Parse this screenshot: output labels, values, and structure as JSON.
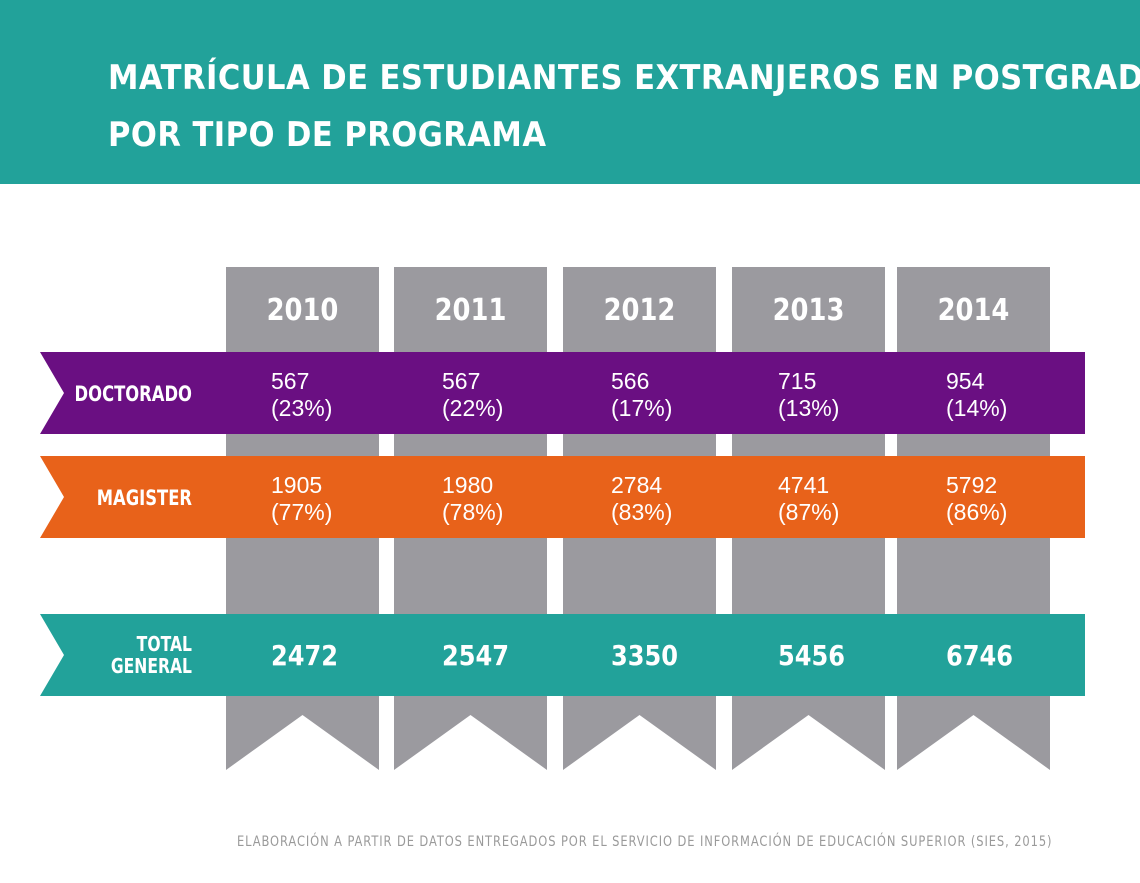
{
  "title_lines": [
    "MATRÍCULA DE ESTUDIANTES EXTRANJEROS EN POSTGRADO",
    "POR TIPO DE PROGRAMA"
  ],
  "source_note": "ELABORACIÓN A PARTIR DE DATOS ENTREGADOS POR EL SERVICIO DE INFORMACIÓN DE EDUCACIÓN SUPERIOR (SIES, 2015)",
  "colors": {
    "header": "#22a29a",
    "year_column": "#9b9a9f",
    "doctorado": "#6a0f82",
    "magister": "#e8621a",
    "total": "#22a29a",
    "text_light": "#ffffff",
    "source_text": "#9a9a9a"
  },
  "chart_data": {
    "type": "table",
    "columns": [
      "2010",
      "2011",
      "2012",
      "2013",
      "2014"
    ],
    "rows": [
      {
        "label_lines": [
          "DOCTORADO"
        ],
        "values": [
          567,
          567,
          566,
          715,
          954
        ],
        "percents": [
          "(23%)",
          "(22%)",
          "(17%)",
          "(13%)",
          "(14%)"
        ]
      },
      {
        "label_lines": [
          "MAGISTER"
        ],
        "values": [
          1905,
          1980,
          2784,
          4741,
          5792
        ],
        "percents": [
          "(77%)",
          "(78%)",
          "(83%)",
          "(87%)",
          "(86%)"
        ]
      },
      {
        "label_lines": [
          "TOTAL",
          "GENERAL"
        ],
        "values": [
          2472,
          2547,
          3350,
          5456,
          6746
        ],
        "percents": []
      }
    ]
  }
}
